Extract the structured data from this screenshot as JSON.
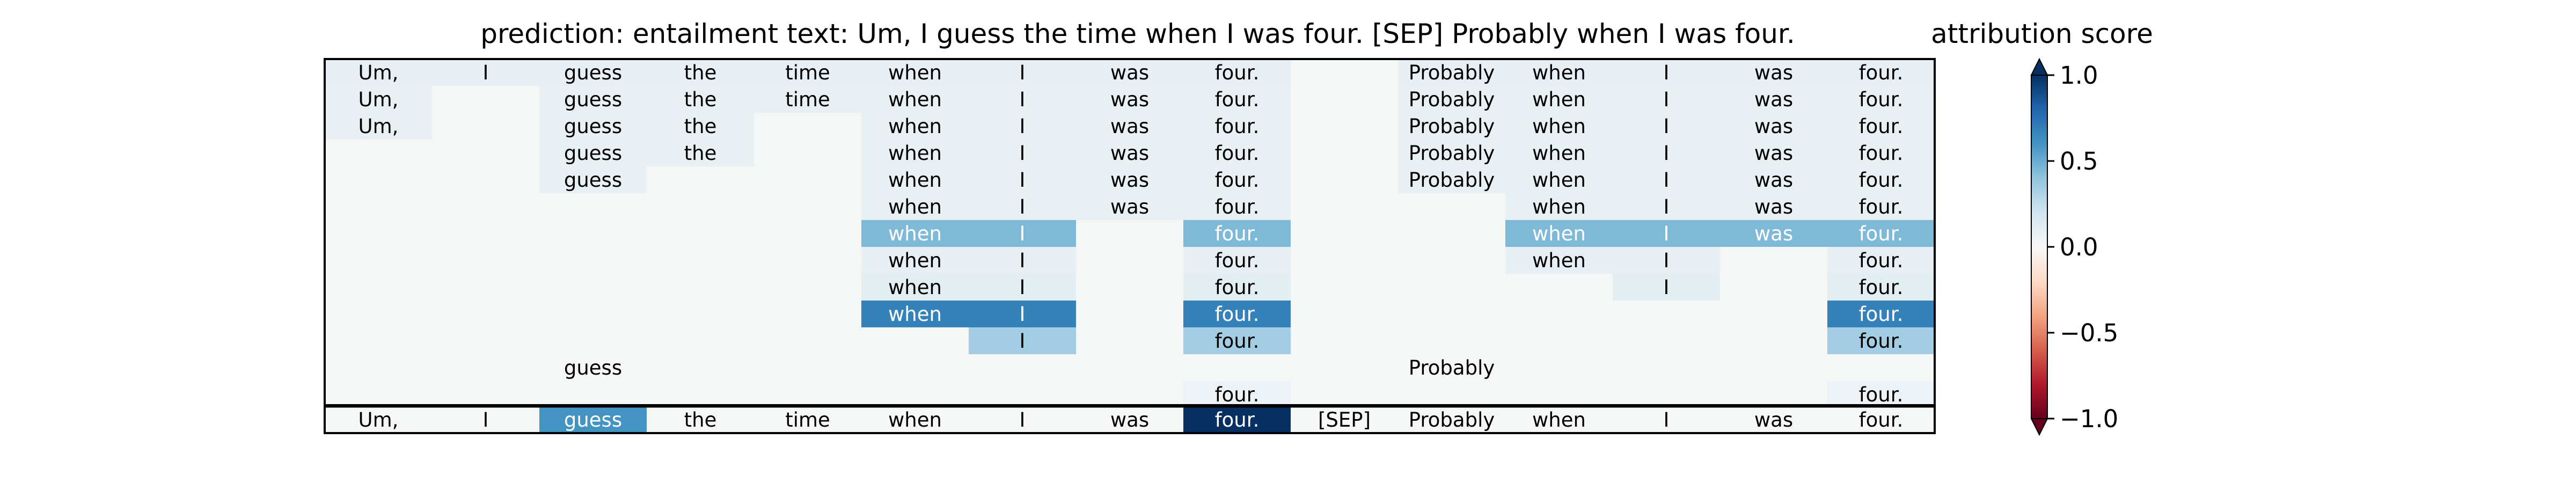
{
  "chart_data": {
    "type": "heatmap",
    "title": "prediction:  entailment     text:  Um, I guess the time when I was four. [SEP] Probably when I was four.",
    "columns": [
      "Um,",
      "I",
      "guess",
      "the",
      "time",
      "when",
      "I",
      "was",
      "four.",
      "[SEP]",
      "Probably",
      "when",
      "I",
      "was",
      "four."
    ],
    "rows": [
      {
        "shown": [
          "Um,",
          "I",
          "guess",
          "the",
          "time",
          "when",
          "I",
          "was",
          "four.",
          "",
          "Probably",
          "when",
          "I",
          "was",
          "four."
        ],
        "scores": [
          0.08,
          0.08,
          0.08,
          0.08,
          0.08,
          0.08,
          0.08,
          0.08,
          0.08,
          0.0,
          0.08,
          0.08,
          0.08,
          0.08,
          0.08
        ]
      },
      {
        "shown": [
          "Um,",
          "",
          "guess",
          "the",
          "time",
          "when",
          "I",
          "was",
          "four.",
          "",
          "Probably",
          "when",
          "I",
          "was",
          "four."
        ],
        "scores": [
          0.07,
          0.0,
          0.07,
          0.07,
          0.07,
          0.07,
          0.07,
          0.07,
          0.07,
          0.0,
          0.07,
          0.07,
          0.07,
          0.07,
          0.07
        ]
      },
      {
        "shown": [
          "Um,",
          "",
          "guess",
          "the",
          "",
          "when",
          "I",
          "was",
          "four.",
          "",
          "Probably",
          "when",
          "I",
          "was",
          "four."
        ],
        "scores": [
          0.07,
          0.0,
          0.07,
          0.07,
          0.0,
          0.07,
          0.07,
          0.07,
          0.07,
          0.0,
          0.07,
          0.07,
          0.07,
          0.07,
          0.07
        ]
      },
      {
        "shown": [
          "",
          "",
          "guess",
          "the",
          "",
          "when",
          "I",
          "was",
          "four.",
          "",
          "Probably",
          "when",
          "I",
          "was",
          "four."
        ],
        "scores": [
          0.0,
          0.0,
          0.07,
          0.07,
          0.0,
          0.07,
          0.07,
          0.07,
          0.07,
          0.0,
          0.07,
          0.07,
          0.07,
          0.07,
          0.07
        ]
      },
      {
        "shown": [
          "",
          "",
          "guess",
          "",
          "",
          "when",
          "I",
          "was",
          "four.",
          "",
          "Probably",
          "when",
          "I",
          "was",
          "four."
        ],
        "scores": [
          0.0,
          0.0,
          0.07,
          0.0,
          0.0,
          0.07,
          0.07,
          0.07,
          0.07,
          0.0,
          0.07,
          0.07,
          0.07,
          0.07,
          0.07
        ]
      },
      {
        "shown": [
          "",
          "",
          "",
          "",
          "",
          "when",
          "I",
          "was",
          "four.",
          "",
          "",
          "when",
          "I",
          "was",
          "four."
        ],
        "scores": [
          0.0,
          0.0,
          0.0,
          0.0,
          0.0,
          0.07,
          0.07,
          0.07,
          0.07,
          0.0,
          0.0,
          0.07,
          0.07,
          0.07,
          0.07
        ]
      },
      {
        "shown": [
          "",
          "",
          "",
          "",
          "",
          "when",
          "I",
          "",
          "four.",
          "",
          "",
          "when",
          "I",
          "was",
          "four."
        ],
        "scores": [
          0.0,
          0.0,
          0.0,
          0.0,
          0.0,
          0.45,
          0.45,
          0.0,
          0.45,
          0.0,
          0.0,
          0.45,
          0.45,
          0.45,
          0.45
        ]
      },
      {
        "shown": [
          "",
          "",
          "",
          "",
          "",
          "when",
          "I",
          "",
          "four.",
          "",
          "",
          "when",
          "I",
          "",
          "four."
        ],
        "scores": [
          0.0,
          0.0,
          0.0,
          0.0,
          0.0,
          0.08,
          0.08,
          0.0,
          0.08,
          0.0,
          0.0,
          0.08,
          0.08,
          0.0,
          0.08
        ]
      },
      {
        "shown": [
          "",
          "",
          "",
          "",
          "",
          "when",
          "I",
          "",
          "four.",
          "",
          "",
          "",
          "I",
          "",
          "four."
        ],
        "scores": [
          0.0,
          0.0,
          0.0,
          0.0,
          0.0,
          0.1,
          0.1,
          0.0,
          0.1,
          0.0,
          0.0,
          0.0,
          0.1,
          0.0,
          0.1
        ]
      },
      {
        "shown": [
          "",
          "",
          "",
          "",
          "",
          "when",
          "I",
          "",
          "four.",
          "",
          "",
          "",
          "",
          "",
          "four."
        ],
        "scores": [
          0.0,
          0.0,
          0.0,
          0.0,
          0.0,
          0.68,
          0.68,
          0.0,
          0.68,
          0.0,
          0.0,
          0.0,
          0.0,
          0.0,
          0.68
        ]
      },
      {
        "shown": [
          "",
          "",
          "",
          "",
          "",
          "",
          "I",
          "",
          "four.",
          "",
          "",
          "",
          "",
          "",
          "four."
        ],
        "scores": [
          0.0,
          0.0,
          0.0,
          0.0,
          0.0,
          0.0,
          0.35,
          0.0,
          0.35,
          0.0,
          0.0,
          0.0,
          0.0,
          0.0,
          0.35
        ]
      },
      {
        "shown": [
          "",
          "",
          "guess",
          "",
          "",
          "",
          "",
          "",
          "",
          "",
          "Probably",
          "",
          "",
          "",
          ""
        ],
        "scores": [
          0.0,
          0.0,
          0.0,
          0.0,
          0.0,
          0.0,
          0.0,
          0.0,
          0.0,
          0.0,
          0.0,
          0.0,
          0.0,
          0.0,
          0.0
        ]
      },
      {
        "shown": [
          "",
          "",
          "",
          "",
          "",
          "",
          "",
          "",
          "four.",
          "",
          "",
          "",
          "",
          "",
          "four."
        ],
        "scores": [
          0.0,
          0.0,
          0.0,
          0.0,
          0.0,
          0.0,
          0.0,
          0.0,
          0.05,
          0.0,
          0.0,
          0.0,
          0.0,
          0.0,
          0.05
        ]
      }
    ],
    "attribution_row": {
      "shown": [
        "Um,",
        "I",
        "guess",
        "the",
        "time",
        "when",
        "I",
        "was",
        "four.",
        "[SEP]",
        "Probably",
        "when",
        "I",
        "was",
        "four."
      ],
      "scores": [
        0.0,
        0.0,
        0.6,
        0.0,
        0.0,
        0.0,
        0.0,
        0.0,
        1.0,
        0.0,
        0.0,
        0.0,
        0.0,
        0.0,
        0.0
      ]
    },
    "colorbar": {
      "label": "attribution score",
      "range": [
        -1.0,
        1.0
      ],
      "ticks": [
        1.0,
        0.5,
        0.0,
        -0.5,
        -1.0
      ],
      "tick_labels": [
        "1.0",
        "0.5",
        "0.0",
        "−0.5",
        "−1.0"
      ],
      "colormap": "RdBu",
      "extend": "both"
    }
  }
}
